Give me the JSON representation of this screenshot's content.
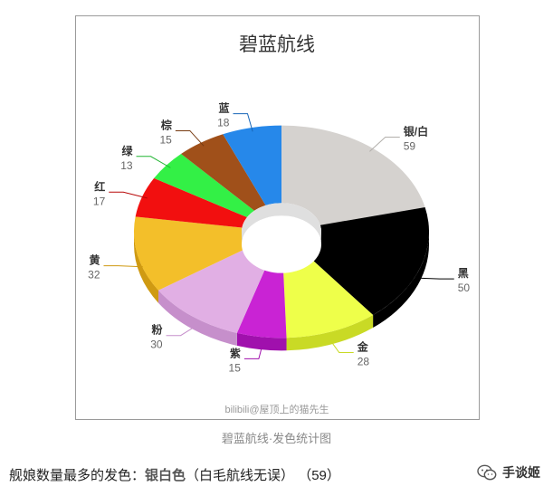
{
  "chart_data": {
    "type": "pie",
    "subtype": "donut-3d",
    "title": "碧蓝航线",
    "watermark": "bilibili@屋顶上的猫先生",
    "legend": "none",
    "slices": [
      {
        "name": "银/白",
        "value": 59,
        "color": "#d5d2cf",
        "side_color": "#b2afab"
      },
      {
        "name": "黑",
        "value": 50,
        "color": "#000000",
        "side_color": "#000000"
      },
      {
        "name": "金",
        "value": 28,
        "color": "#eeff4a",
        "side_color": "#c9da25"
      },
      {
        "name": "紫",
        "value": 15,
        "color": "#c923d4",
        "side_color": "#a010ad"
      },
      {
        "name": "粉",
        "value": 30,
        "color": "#e1afe4",
        "side_color": "#c68fcb"
      },
      {
        "name": "黄",
        "value": 32,
        "color": "#f3bf2a",
        "side_color": "#cf9a12"
      },
      {
        "name": "红",
        "value": 17,
        "color": "#f20f0f",
        "side_color": "#b80808"
      },
      {
        "name": "绿",
        "value": 13,
        "color": "#33f046",
        "side_color": "#22b533"
      },
      {
        "name": "棕",
        "value": 15,
        "color": "#a0501a",
        "side_color": "#773a10"
      },
      {
        "name": "蓝",
        "value": 18,
        "color": "#2688ea",
        "side_color": "#1766b8"
      }
    ]
  },
  "caption": "碧蓝航线·发色统计图",
  "summary": {
    "prefix": "舰娘数量最多的发色：",
    "highlight": "银白色",
    "suffix": "（白毛航线无误） （59）"
  },
  "brand": {
    "name": "手谈姬",
    "icon": "wechat-icon"
  }
}
